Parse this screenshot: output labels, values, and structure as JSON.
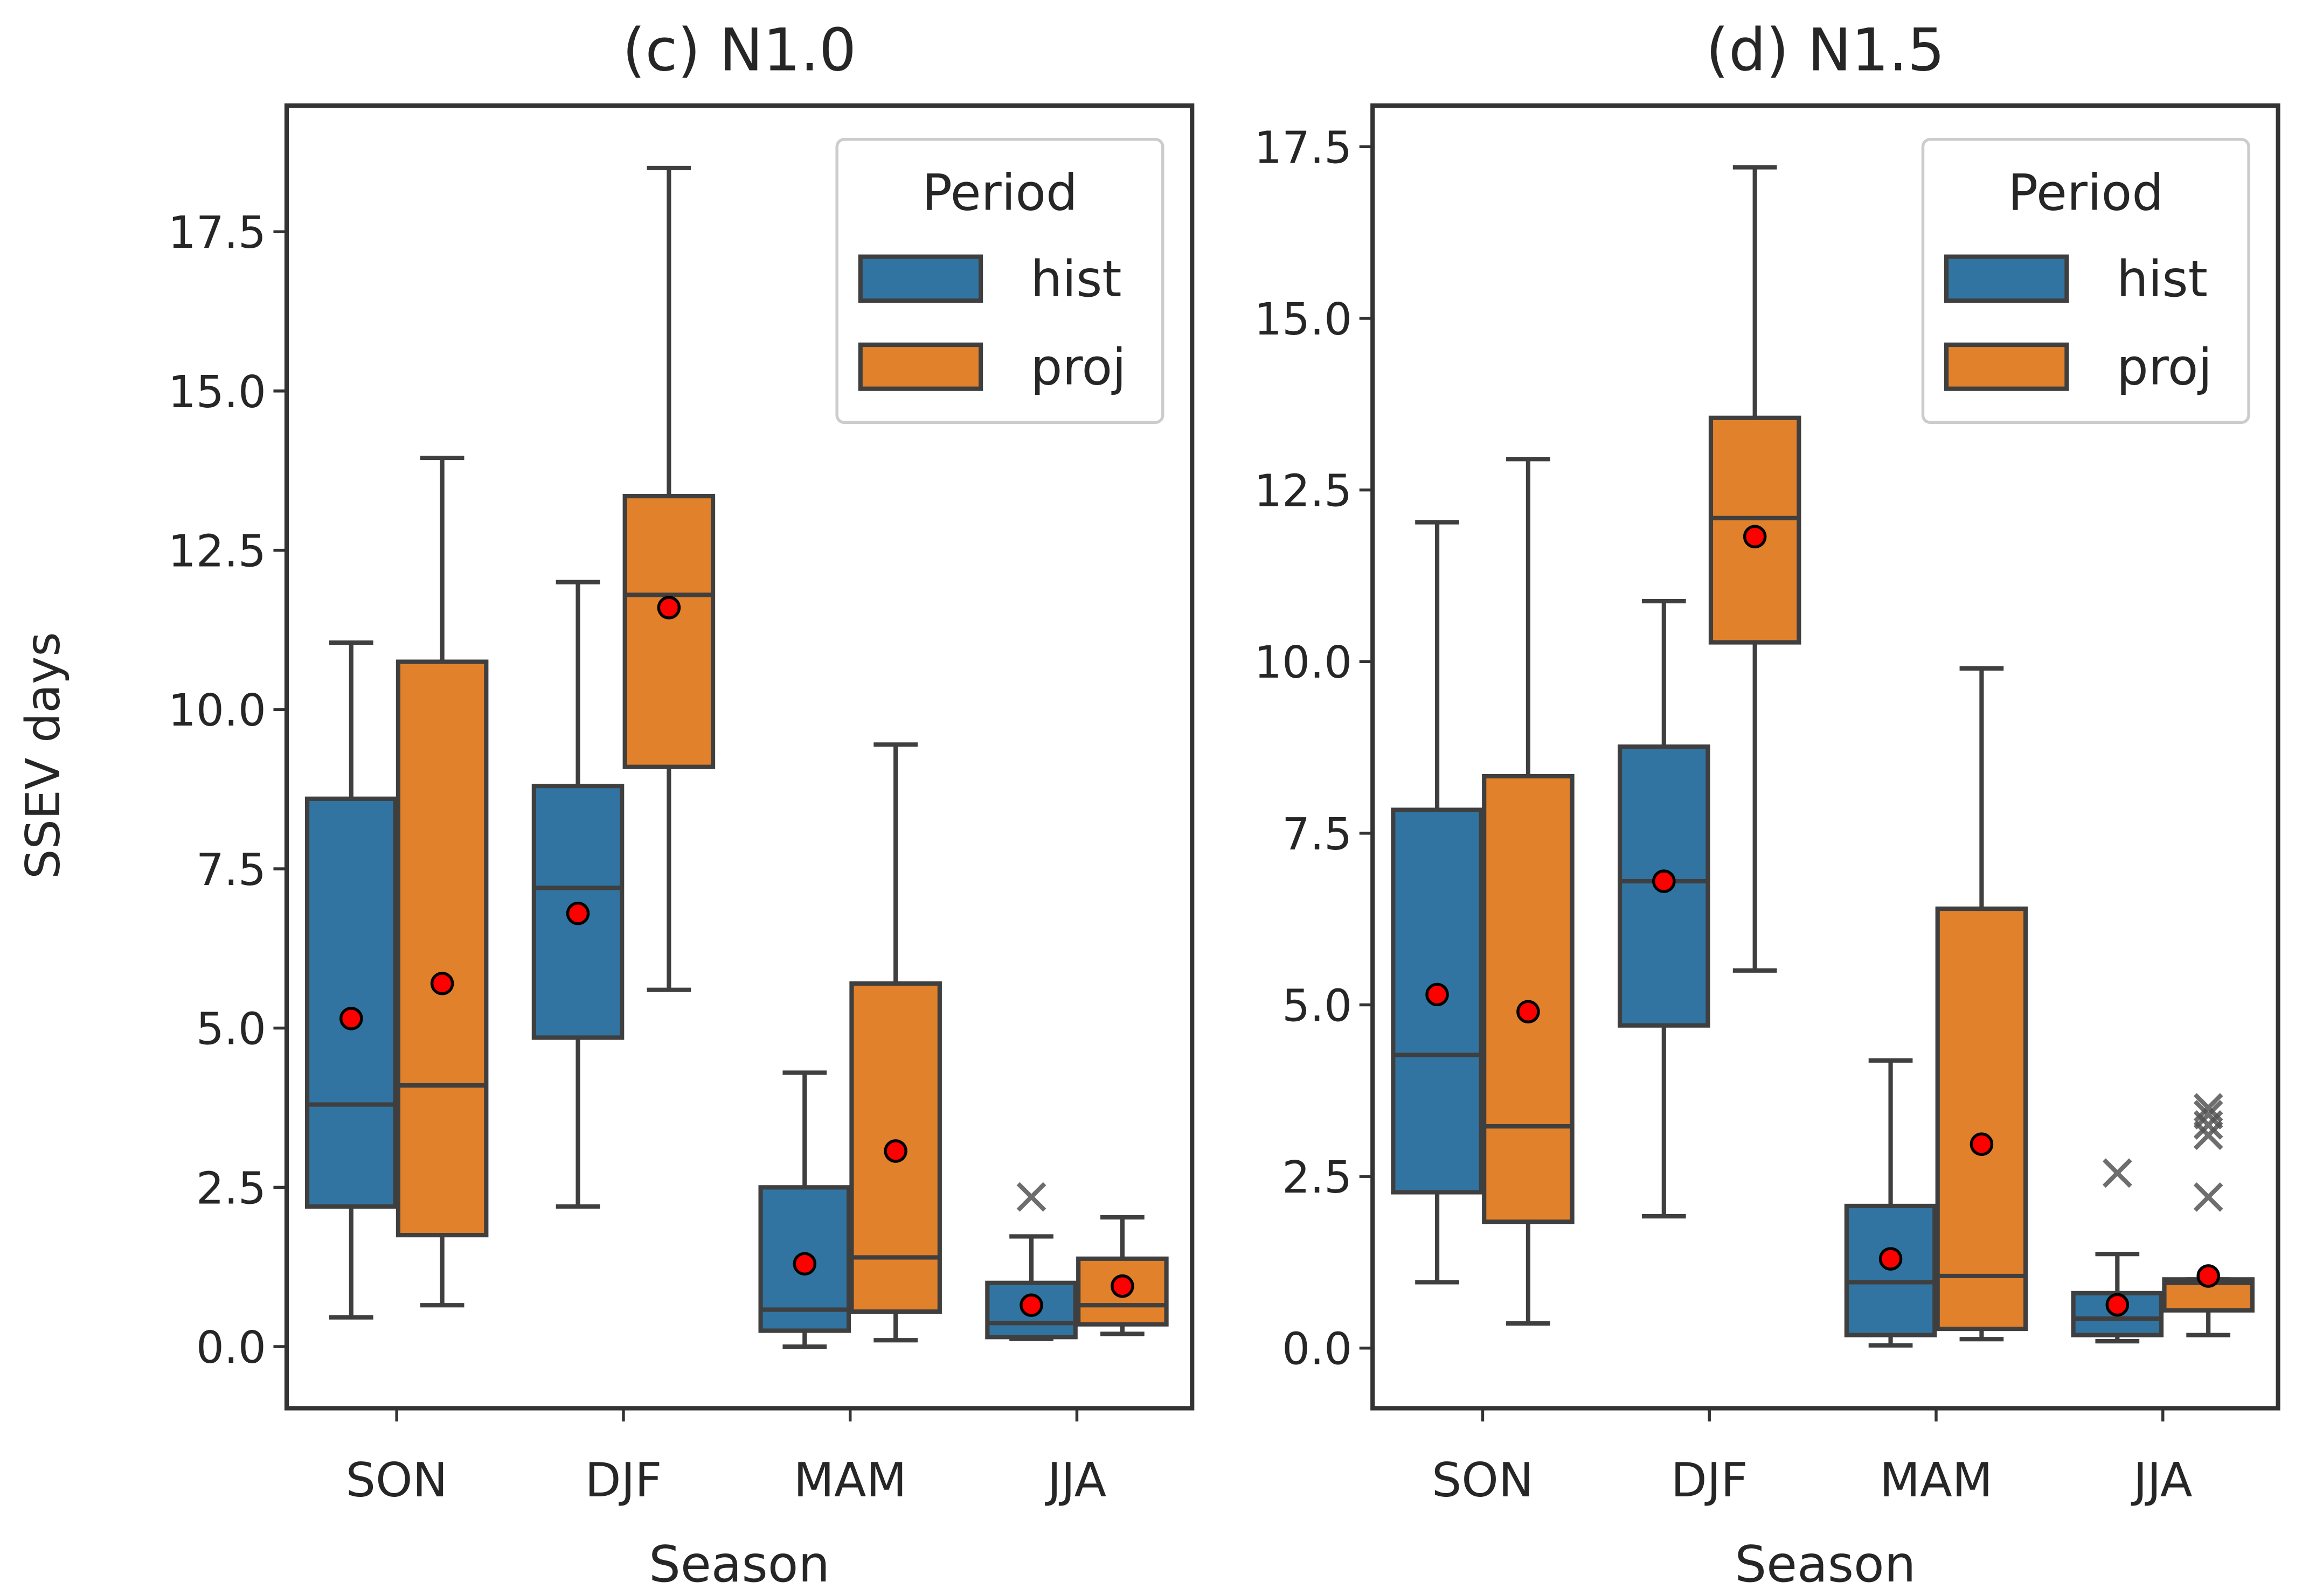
{
  "chart_data": [
    {
      "type": "box",
      "title": "(c) N1.0",
      "xlabel": "Season",
      "ylabel": "SSEV days",
      "ylim": [
        -0.9,
        19.4
      ],
      "yticks": [
        "0.0",
        "2.5",
        "5.0",
        "7.5",
        "10.0",
        "12.5",
        "15.0",
        "17.5"
      ],
      "categories": [
        "SON",
        "DJF",
        "MAM",
        "JJA"
      ],
      "legend": {
        "title": "Period",
        "placement": "top-right",
        "entries": [
          "hist",
          "proj"
        ]
      },
      "series": [
        {
          "name": "hist",
          "color": "#3274a1",
          "boxes": [
            {
              "low": 0.46,
              "q1": 2.2,
              "median": 3.8,
              "q3": 8.6,
              "high": 11.05,
              "mean": 5.15,
              "outliers": []
            },
            {
              "low": 2.2,
              "q1": 4.85,
              "median": 7.2,
              "q3": 8.8,
              "high": 12.0,
              "mean": 6.8,
              "outliers": []
            },
            {
              "low": 0.0,
              "q1": 0.25,
              "median": 0.58,
              "q3": 2.5,
              "high": 4.3,
              "mean": 1.3,
              "outliers": []
            },
            {
              "low": 0.12,
              "q1": 0.15,
              "median": 0.37,
              "q3": 1.0,
              "high": 1.73,
              "mean": 0.65,
              "outliers": [
                2.35
              ]
            }
          ]
        },
        {
          "name": "proj",
          "color": "#e1812c",
          "boxes": [
            {
              "low": 0.65,
              "q1": 1.75,
              "median": 4.1,
              "q3": 10.75,
              "high": 13.95,
              "mean": 5.7,
              "outliers": []
            },
            {
              "low": 5.6,
              "q1": 9.1,
              "median": 11.8,
              "q3": 13.35,
              "high": 18.5,
              "mean": 11.6,
              "outliers": []
            },
            {
              "low": 0.1,
              "q1": 0.55,
              "median": 1.4,
              "q3": 5.7,
              "high": 9.45,
              "mean": 3.07,
              "outliers": []
            },
            {
              "low": 0.2,
              "q1": 0.35,
              "median": 0.65,
              "q3": 1.38,
              "high": 2.03,
              "mean": 0.95,
              "outliers": []
            }
          ]
        }
      ]
    },
    {
      "type": "box",
      "title": "(d) N1.5",
      "xlabel": "Season",
      "ylabel": "",
      "ylim": [
        -0.9,
        18.1
      ],
      "yticks": [
        "0.0",
        "2.5",
        "5.0",
        "7.5",
        "10.0",
        "12.5",
        "15.0",
        "17.5"
      ],
      "categories": [
        "SON",
        "DJF",
        "MAM",
        "JJA"
      ],
      "legend": {
        "title": "Period",
        "placement": "top-right",
        "entries": [
          "hist",
          "proj"
        ]
      },
      "series": [
        {
          "name": "hist",
          "color": "#3274a1",
          "boxes": [
            {
              "low": 0.96,
              "q1": 2.27,
              "median": 4.27,
              "q3": 7.84,
              "high": 12.03,
              "mean": 5.15,
              "outliers": []
            },
            {
              "low": 1.92,
              "q1": 4.7,
              "median": 6.8,
              "q3": 8.76,
              "high": 10.88,
              "mean": 6.8,
              "outliers": []
            },
            {
              "low": 0.04,
              "q1": 0.19,
              "median": 0.96,
              "q3": 2.07,
              "high": 4.19,
              "mean": 1.3,
              "outliers": []
            },
            {
              "low": 0.1,
              "q1": 0.19,
              "median": 0.43,
              "q3": 0.8,
              "high": 1.37,
              "mean": 0.63,
              "outliers": [
                2.55
              ]
            }
          ]
        },
        {
          "name": "proj",
          "color": "#e1812c",
          "boxes": [
            {
              "low": 0.36,
              "q1": 1.84,
              "median": 3.23,
              "q3": 8.33,
              "high": 12.95,
              "mean": 4.9,
              "outliers": []
            },
            {
              "low": 5.5,
              "q1": 10.28,
              "median": 12.09,
              "q3": 13.55,
              "high": 17.2,
              "mean": 11.82,
              "outliers": []
            },
            {
              "low": 0.13,
              "q1": 0.28,
              "median": 1.05,
              "q3": 6.4,
              "high": 9.9,
              "mean": 2.97,
              "outliers": []
            },
            {
              "low": 0.19,
              "q1": 0.55,
              "median": 0.95,
              "q3": 1.0,
              "high": 1.0,
              "mean": 1.05,
              "outliers": [
                2.2,
                3.1,
                3.25,
                3.4,
                3.5
              ]
            }
          ]
        }
      ]
    }
  ]
}
